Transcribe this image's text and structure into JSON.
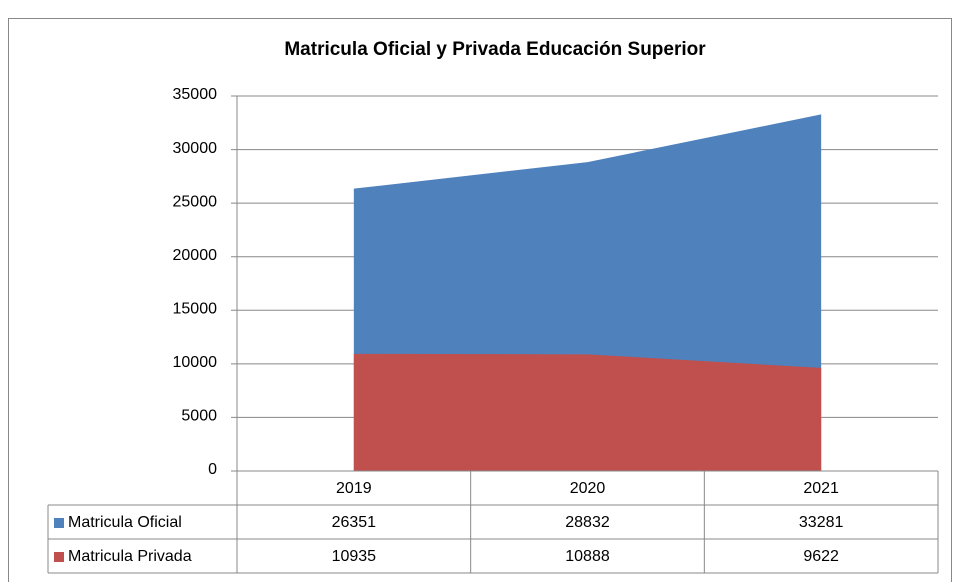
{
  "chart_data": {
    "type": "area",
    "title": "Matricula Oficial y Privada Educación Superior",
    "categories": [
      "2019",
      "2020",
      "2021"
    ],
    "series": [
      {
        "name": "Matricula Oficial",
        "color": "#4f81bd",
        "values": [
          26351,
          28832,
          33281
        ]
      },
      {
        "name": "Matricula Privada",
        "color": "#c0504d",
        "values": [
          10935,
          10888,
          9622
        ]
      }
    ],
    "ylim": [
      0,
      35000
    ],
    "yticks": [
      0,
      5000,
      10000,
      15000,
      20000,
      25000,
      30000,
      35000
    ],
    "grid": true,
    "legend": "table"
  }
}
